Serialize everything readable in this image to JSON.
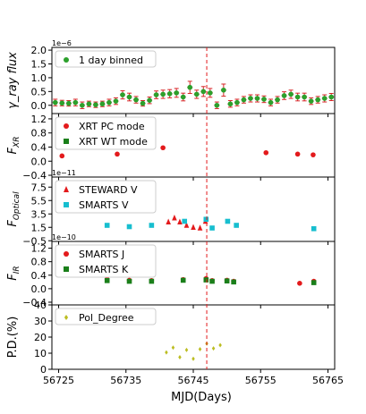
{
  "chart_data": {
    "type": "scatter",
    "xlabel": "MJD(Days)",
    "xlim": [
      56724,
      56766
    ],
    "x_ticks": [
      56725,
      56735,
      56745,
      56755,
      56765
    ],
    "x_tick_labels": [
      "56725",
      "56735",
      "56745",
      "56755",
      "56765"
    ],
    "vline": {
      "x": 56747,
      "color": "#e31a1c"
    },
    "panels": [
      {
        "id": "gamma",
        "ylabel": "γ_ray flux",
        "scale_label": "1e−6",
        "ylim": [
          -0.3,
          2.1
        ],
        "y_ticks": [
          -0.0,
          0.5,
          1.0,
          1.5,
          2.0
        ],
        "y_tick_labels": [
          "0.0",
          "0.5",
          "1.0",
          "1.5",
          "2.0"
        ],
        "series": [
          {
            "name": "1 day binned",
            "marker": "circle",
            "color": "#2ca02c",
            "err_color": "#d62728",
            "x": [
              56724.5,
              56725.5,
              56726.5,
              56727.5,
              56728.5,
              56729.5,
              56730.5,
              56731.5,
              56732.5,
              56733.5,
              56734.5,
              56735.5,
              56736.5,
              56737.5,
              56738.5,
              56739.5,
              56740.5,
              56741.5,
              56742.5,
              56743.5,
              56744.5,
              56745.5,
              56746.5,
              56747.5,
              56748.5,
              56749.5,
              56750.5,
              56751.5,
              56752.5,
              56753.5,
              56754.5,
              56755.5,
              56756.5,
              56757.5,
              56758.5,
              56759.5,
              56760.5,
              56761.5,
              56762.5,
              56763.5,
              56764.5,
              56765.5
            ],
            "y": [
              0.1,
              0.08,
              0.07,
              0.1,
              0.0,
              0.05,
              0.02,
              0.05,
              0.1,
              0.15,
              0.38,
              0.3,
              0.2,
              0.07,
              0.18,
              0.38,
              0.4,
              0.42,
              0.45,
              0.3,
              0.65,
              0.4,
              0.5,
              0.45,
              0.0,
              0.55,
              0.05,
              0.1,
              0.2,
              0.25,
              0.25,
              0.22,
              0.1,
              0.2,
              0.35,
              0.4,
              0.3,
              0.3,
              0.15,
              0.2,
              0.25,
              0.3
            ],
            "err": [
              0.12,
              0.1,
              0.1,
              0.12,
              0.12,
              0.1,
              0.1,
              0.1,
              0.12,
              0.12,
              0.15,
              0.14,
              0.12,
              0.1,
              0.12,
              0.14,
              0.15,
              0.15,
              0.16,
              0.14,
              0.22,
              0.15,
              0.18,
              0.16,
              0.12,
              0.22,
              0.12,
              0.12,
              0.12,
              0.13,
              0.13,
              0.12,
              0.12,
              0.12,
              0.14,
              0.15,
              0.14,
              0.14,
              0.12,
              0.12,
              0.13,
              0.13
            ]
          }
        ]
      },
      {
        "id": "xrt",
        "ylabel": "F_XR",
        "ylim": [
          -0.45,
          1.35
        ],
        "y_ticks": [
          -0.4,
          0.0,
          0.4,
          0.8,
          1.2
        ],
        "y_tick_labels": [
          "−0.4",
          "0.0",
          "0.4",
          "0.8",
          "1.2"
        ],
        "series": [
          {
            "name": "XRT PC mode",
            "marker": "circle",
            "color": "#e31a1c",
            "x": [
              56725.5,
              56733.7,
              56740.5,
              56755.8,
              56760.5,
              56762.8
            ],
            "y": [
              0.15,
              0.2,
              0.38,
              0.24,
              0.2,
              0.18
            ]
          },
          {
            "name": "XRT WT mode",
            "marker": "square",
            "color": "#1a7f1a",
            "x": [],
            "y": []
          }
        ]
      },
      {
        "id": "optical",
        "ylabel": "F_Optical",
        "scale_label": "1e−11",
        "ylim": [
          -0.6,
          9.0
        ],
        "y_ticks": [
          -0.5,
          1.5,
          3.5,
          5.5,
          7.5
        ],
        "y_tick_labels": [
          "−0.5",
          "1.5",
          "3.5",
          "5.5",
          "7.5"
        ],
        "series": [
          {
            "name": "STEWARD V",
            "marker": "triangle",
            "color": "#e31a1c",
            "x": [
              56741.3,
              56742.2,
              56743.0,
              56744.0,
              56745.0,
              56746.0,
              56746.8
            ],
            "y": [
              2.3,
              2.9,
              2.3,
              1.8,
              1.5,
              1.4,
              2.4
            ]
          },
          {
            "name": "SMARTS V",
            "marker": "square",
            "color": "#17becf",
            "x": [
              56732.2,
              56735.5,
              56738.8,
              56743.7,
              56746.9,
              56747.8,
              56750.1,
              56751.4,
              56762.9
            ],
            "y": [
              1.8,
              1.6,
              1.8,
              2.4,
              2.7,
              1.4,
              2.4,
              1.8,
              1.3
            ]
          }
        ]
      },
      {
        "id": "ir",
        "ylabel": "F_IR",
        "scale_label": "1e−10",
        "ylim": [
          -0.48,
          1.4
        ],
        "y_ticks": [
          -0.4,
          0.0,
          0.4,
          0.8,
          1.2
        ],
        "y_tick_labels": [
          "−0.4",
          "0.0",
          "0.4",
          "0.8",
          "1.2"
        ],
        "series": [
          {
            "name": "SMARTS J",
            "marker": "circle",
            "color": "#e31a1c",
            "x": [
              56732.2,
              56735.5,
              56738.8,
              56743.5,
              56746.9,
              56747.8,
              56750.0,
              56751.0,
              56760.8,
              56762.9
            ],
            "y": [
              0.28,
              0.25,
              0.24,
              0.27,
              0.3,
              0.24,
              0.25,
              0.22,
              0.16,
              0.22
            ]
          },
          {
            "name": "SMARTS K",
            "marker": "square",
            "color": "#1a7f1a",
            "x": [
              56732.2,
              56735.5,
              56738.8,
              56743.5,
              56746.9,
              56747.8,
              56750.0,
              56751.0,
              56762.9
            ],
            "y": [
              0.24,
              0.22,
              0.22,
              0.25,
              0.26,
              0.22,
              0.23,
              0.2,
              0.18
            ]
          }
        ]
      },
      {
        "id": "pd",
        "ylabel": "P.D.(%)",
        "ylim": [
          0,
          40
        ],
        "y_ticks": [
          0,
          10,
          20,
          30,
          40
        ],
        "y_tick_labels": [
          "0",
          "10",
          "20",
          "30",
          "40"
        ],
        "series": [
          {
            "name": "Pol_Degree",
            "marker": "diamond",
            "color": "#bcbd22",
            "x": [
              56741.0,
              56742.0,
              56743.0,
              56744.0,
              56745.0,
              56746.0,
              56747.0,
              56748.0,
              56749.0
            ],
            "y": [
              10.5,
              13.5,
              7.5,
              12.0,
              6.5,
              12.5,
              16.0,
              13.0,
              15.0
            ]
          }
        ]
      }
    ]
  }
}
